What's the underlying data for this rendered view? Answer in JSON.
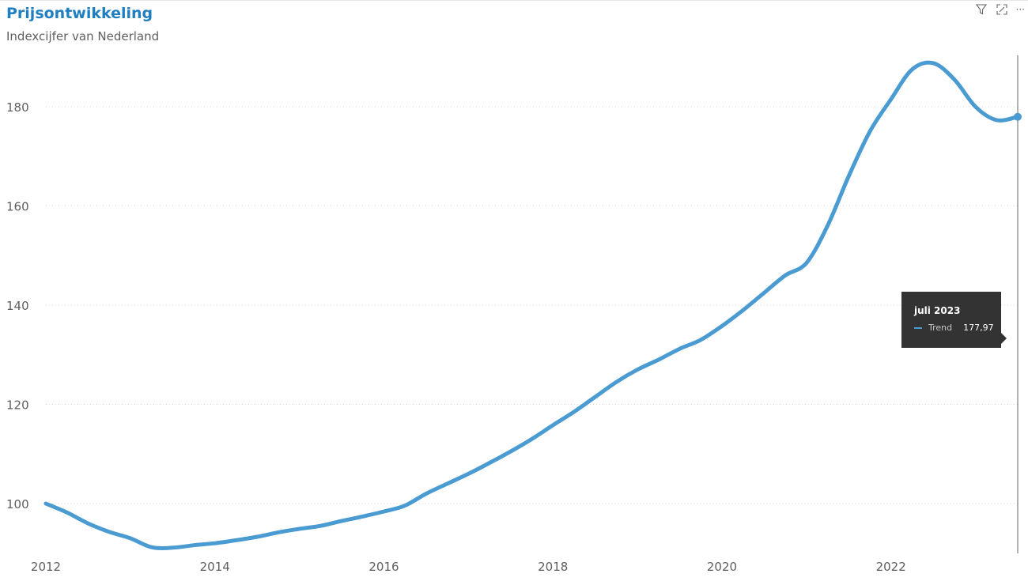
{
  "header": {
    "title": "Prijsontwikkeling",
    "subtitle": "Indexcijfer van Nederland",
    "toolbar_icons": [
      "filter-icon",
      "focus-mode-icon",
      "more-options-icon"
    ],
    "more_label": "···"
  },
  "tooltip": {
    "date": "juli 2023",
    "series_name": "Trend",
    "value_text": "177,97"
  },
  "colors": {
    "title": "#1f7fc1",
    "line": "#4a9bd1",
    "tooltip_bg": "#333333",
    "grid": "#d9d9d9"
  },
  "chart_data": {
    "type": "line",
    "title": "Prijsontwikkeling",
    "subtitle": "Indexcijfer van Nederland",
    "x_ticks": [
      2012,
      2014,
      2016,
      2018,
      2020,
      2022
    ],
    "y_ticks": [
      100,
      120,
      140,
      160,
      180
    ],
    "xlim": [
      2012,
      2023.5
    ],
    "ylim": [
      90,
      190
    ],
    "grid": "horizontal-dotted",
    "series": [
      {
        "name": "Trend",
        "x": [
          2012.0,
          2012.25,
          2012.5,
          2012.75,
          2013.0,
          2013.25,
          2013.5,
          2013.75,
          2014.0,
          2014.25,
          2014.5,
          2014.75,
          2015.0,
          2015.25,
          2015.5,
          2015.75,
          2016.0,
          2016.25,
          2016.5,
          2016.75,
          2017.0,
          2017.25,
          2017.5,
          2017.75,
          2018.0,
          2018.25,
          2018.5,
          2018.75,
          2019.0,
          2019.25,
          2019.5,
          2019.75,
          2020.0,
          2020.25,
          2020.5,
          2020.75,
          2021.0,
          2021.25,
          2021.5,
          2021.75,
          2022.0,
          2022.25,
          2022.5,
          2022.75,
          2023.0,
          2023.25,
          2023.5
        ],
        "y": [
          100.0,
          98.2,
          96.0,
          94.3,
          93.0,
          91.2,
          91.1,
          91.6,
          92.0,
          92.6,
          93.3,
          94.2,
          94.9,
          95.5,
          96.5,
          97.4,
          98.4,
          99.6,
          102.0,
          104.0,
          106.0,
          108.2,
          110.5,
          113.0,
          115.8,
          118.5,
          121.5,
          124.5,
          127.0,
          129.0,
          131.2,
          133.0,
          135.8,
          139.0,
          142.5,
          146.0,
          148.5,
          156.0,
          166.0,
          175.0,
          181.5,
          187.5,
          188.8,
          185.5,
          180.0,
          177.3,
          177.97
        ]
      }
    ],
    "highlight": {
      "x": 2023.5,
      "y": 177.97
    }
  }
}
